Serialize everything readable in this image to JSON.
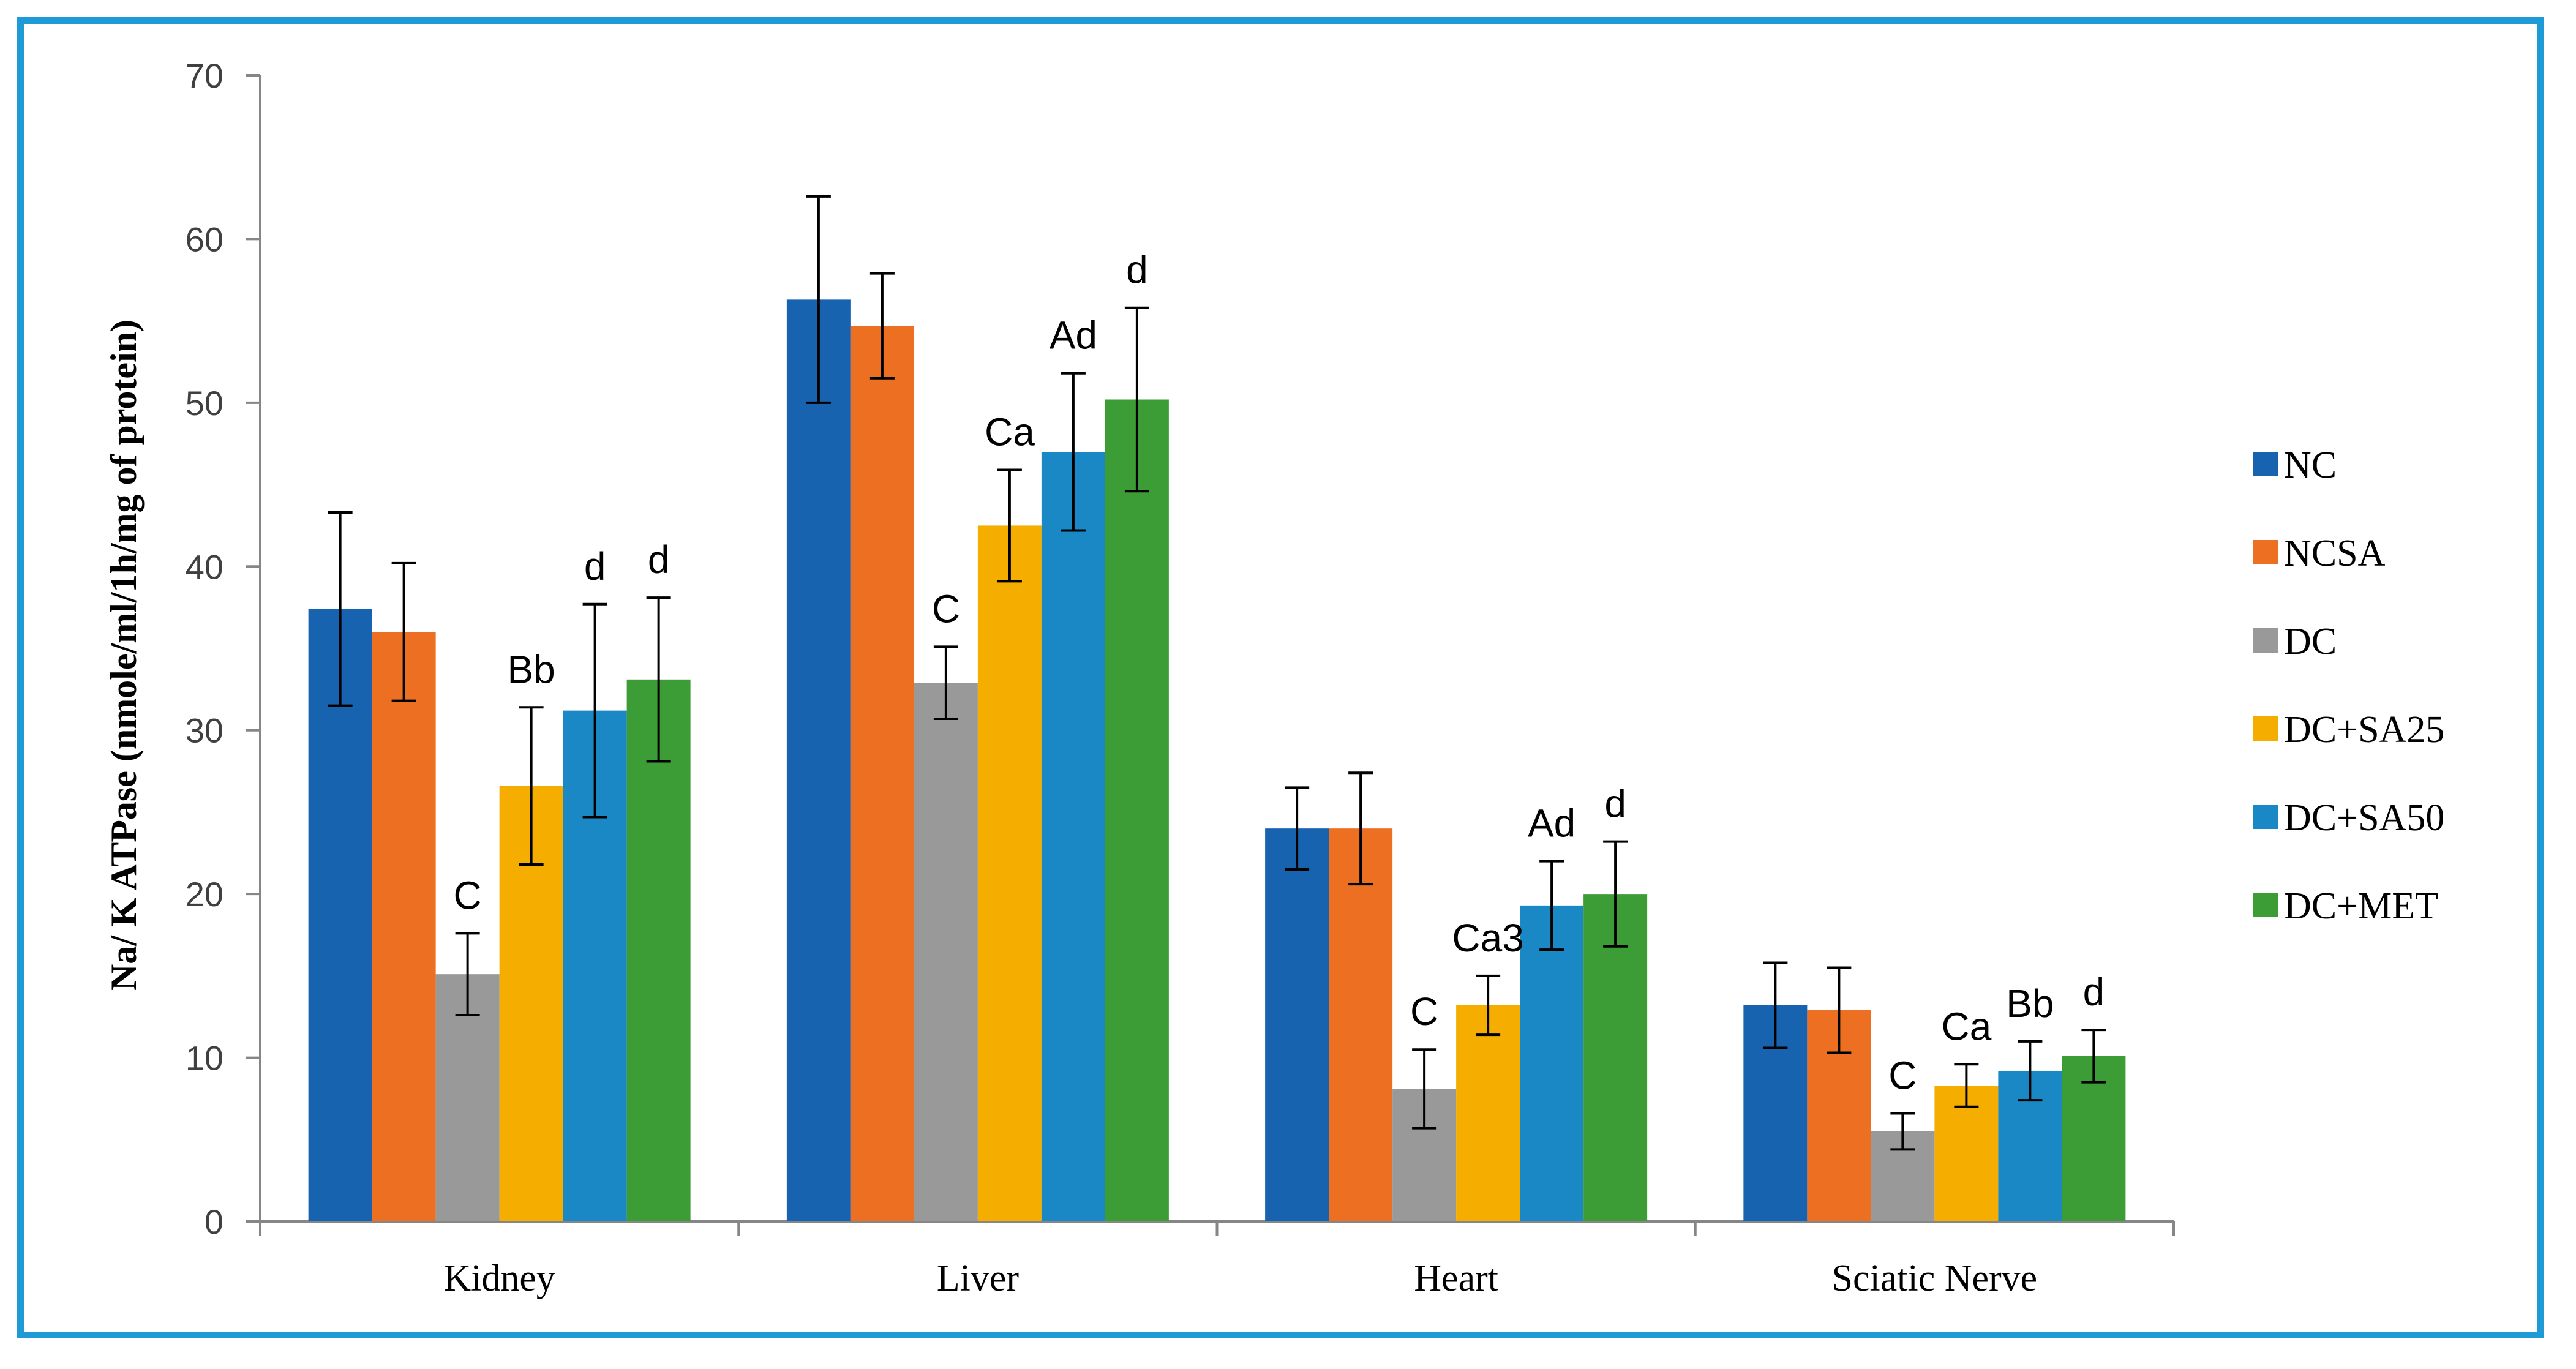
{
  "chart_data": {
    "type": "bar",
    "title": "",
    "ylabel": "Na/ K ATPase (nmole/ml/1h/mg of protein)",
    "xlabel": "",
    "ylim": [
      0,
      70
    ],
    "yticks": [
      0,
      10,
      20,
      30,
      40,
      50,
      60,
      70
    ],
    "categories": [
      "Kidney",
      "Liver",
      "Heart",
      "Sciatic Nerve"
    ],
    "legend_position": "right",
    "series": [
      {
        "name": "NC",
        "color": "#1763b0",
        "values": [
          37.4,
          56.3,
          24.0,
          13.2
        ],
        "errors": [
          5.9,
          6.3,
          2.5,
          2.6
        ],
        "labels": [
          "",
          "",
          "",
          ""
        ]
      },
      {
        "name": "NCSA",
        "color": "#ed7022",
        "values": [
          36.0,
          54.7,
          24.0,
          12.9
        ],
        "errors": [
          4.2,
          3.2,
          3.4,
          2.6
        ],
        "labels": [
          "",
          "",
          "",
          ""
        ]
      },
      {
        "name": "DC",
        "color": "#999999",
        "values": [
          15.1,
          32.9,
          8.1,
          5.5
        ],
        "errors": [
          2.5,
          2.2,
          2.4,
          1.1
        ],
        "labels": [
          "C",
          "C",
          "C",
          "C"
        ]
      },
      {
        "name": "DC+SA25",
        "color": "#f5ae00",
        "values": [
          26.6,
          42.5,
          13.2,
          8.3
        ],
        "errors": [
          4.8,
          3.4,
          1.8,
          1.3
        ],
        "labels": [
          "Bb",
          "Ca",
          "Ca3",
          "Ca"
        ]
      },
      {
        "name": "DC+SA50",
        "color": "#1a88c4",
        "values": [
          31.2,
          47.0,
          19.3,
          9.2
        ],
        "errors": [
          6.5,
          4.8,
          2.7,
          1.8
        ],
        "labels": [
          "d",
          "Ad",
          "Ad",
          "Bb"
        ]
      },
      {
        "name": "DC+MET",
        "color": "#3c9c35",
        "values": [
          33.1,
          50.2,
          20.0,
          10.1
        ],
        "errors": [
          5.0,
          5.6,
          3.2,
          1.6
        ],
        "labels": [
          "d",
          "d",
          "d",
          "d"
        ]
      }
    ]
  }
}
